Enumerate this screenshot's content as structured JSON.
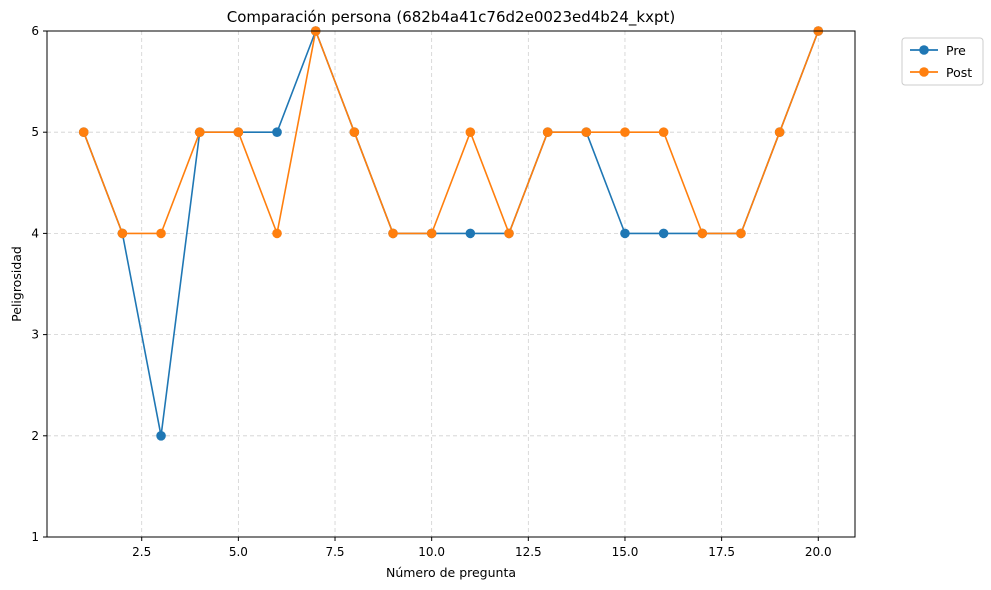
{
  "chart_data": {
    "type": "line",
    "title": "Comparación persona (682b4a41c76d2e0023ed4b24_kxpt)",
    "xlabel": "Número de pregunta",
    "ylabel": "Peligrosidad",
    "xlim": [
      0.05,
      20.95
    ],
    "ylim": [
      1,
      6
    ],
    "xticks": [
      2.5,
      5.0,
      7.5,
      10.0,
      12.5,
      15.0,
      17.5,
      20.0
    ],
    "xtick_labels": [
      "2.5",
      "5.0",
      "7.5",
      "10.0",
      "12.5",
      "15.0",
      "17.5",
      "20.0"
    ],
    "yticks": [
      1,
      2,
      3,
      4,
      5,
      6
    ],
    "ytick_labels": [
      "1",
      "2",
      "3",
      "4",
      "5",
      "6"
    ],
    "grid": true,
    "legend_position": "outside-top-right",
    "x": [
      1,
      2,
      3,
      4,
      5,
      6,
      7,
      8,
      9,
      10,
      11,
      12,
      13,
      14,
      15,
      16,
      17,
      18,
      19,
      20
    ],
    "series": [
      {
        "name": "Pre",
        "color": "#1f77b4",
        "values": [
          5,
          4,
          2,
          5,
          5,
          5,
          6,
          5,
          4,
          4,
          4,
          4,
          5,
          5,
          4,
          4,
          4,
          4,
          5,
          6
        ]
      },
      {
        "name": "Post",
        "color": "#ff7f0e",
        "values": [
          5,
          4,
          4,
          5,
          5,
          4,
          6,
          5,
          4,
          4,
          5,
          4,
          5,
          5,
          5,
          5,
          4,
          4,
          5,
          6
        ]
      }
    ]
  }
}
